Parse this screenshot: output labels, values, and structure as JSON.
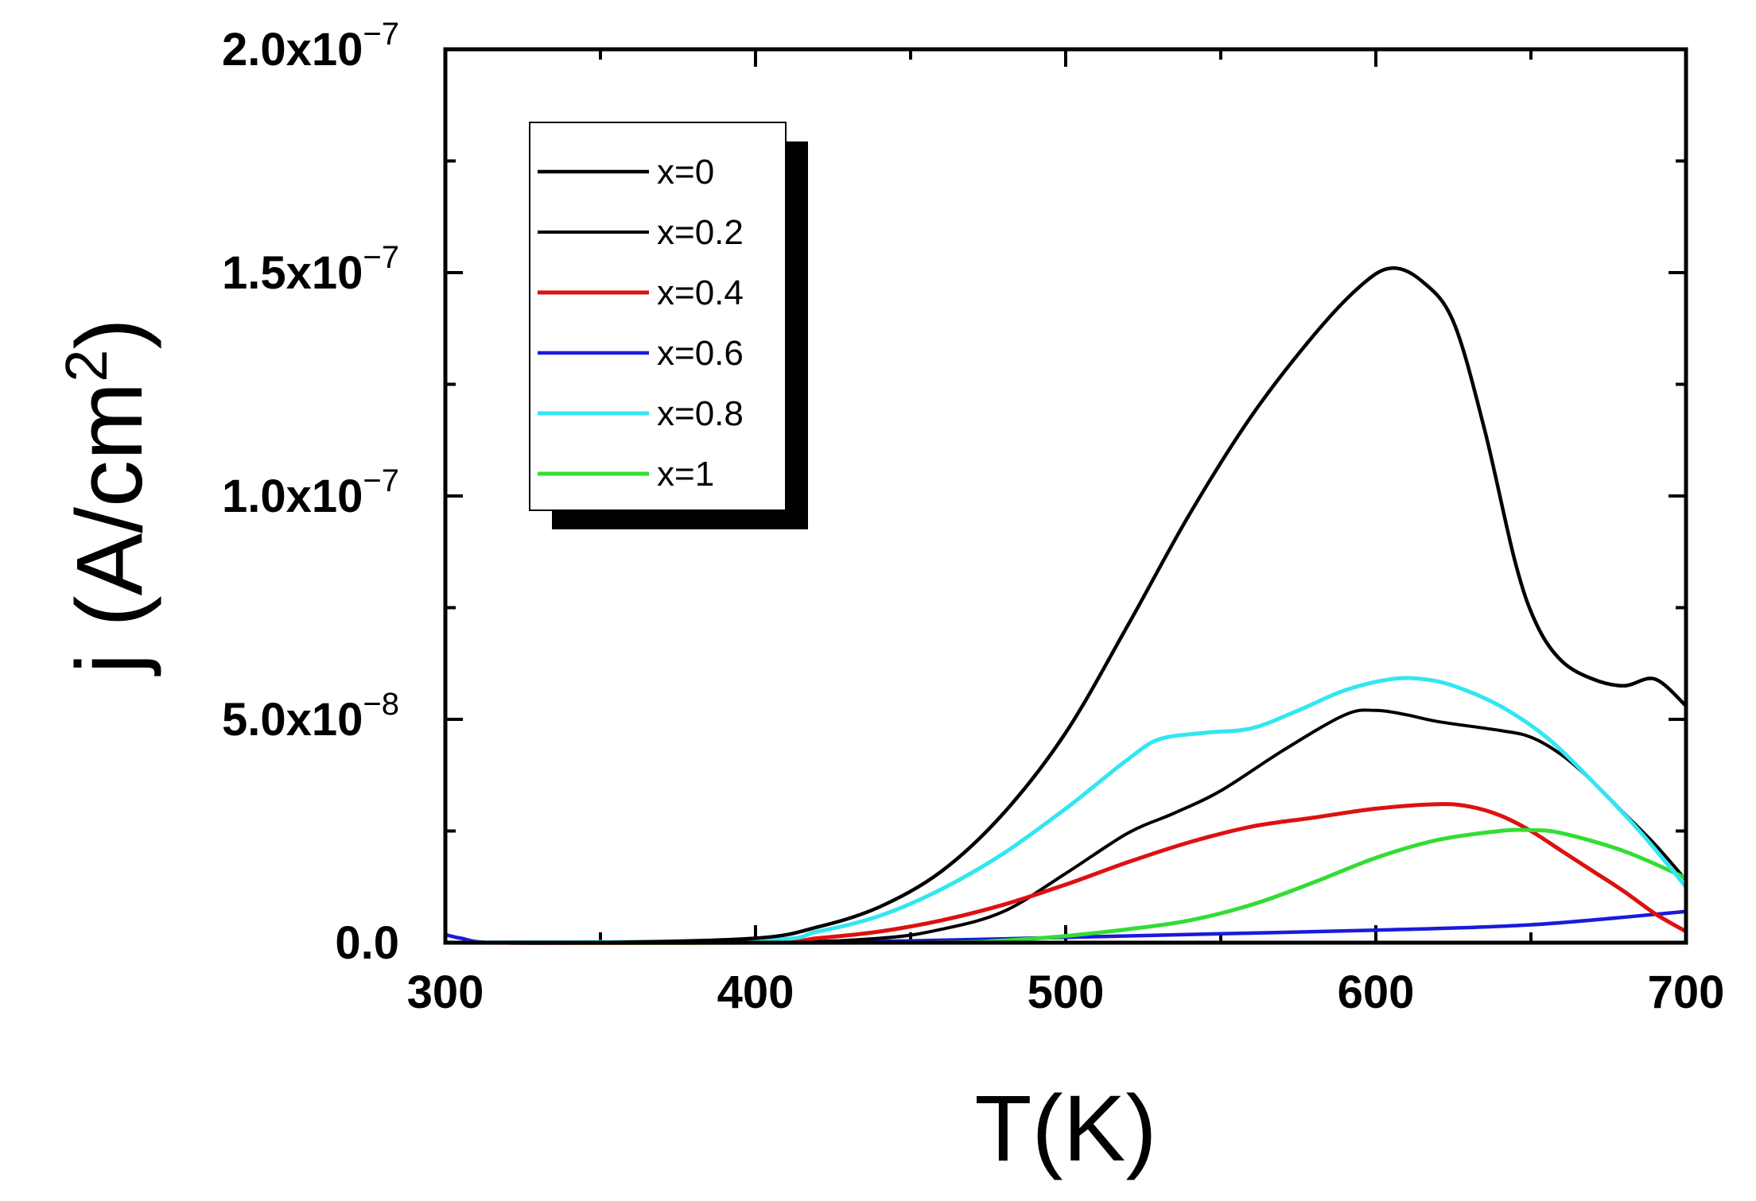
{
  "chart_data": {
    "type": "line",
    "xlabel": "T(K)",
    "ylabel": "j (A/cm",
    "ylabel_sup": "2",
    "ylabel_close": ")",
    "xlim": [
      300,
      700
    ],
    "ylim": [
      0,
      2e-07
    ],
    "x_ticks": [
      300,
      400,
      500,
      600,
      700
    ],
    "x_tick_labels": [
      "300",
      "400",
      "500",
      "600",
      "700"
    ],
    "y_ticks": [
      0,
      5e-08,
      1e-07,
      1.5e-07,
      2e-07
    ],
    "y_tick_labels": [
      {
        "mantissa": "0.0",
        "exp": ""
      },
      {
        "mantissa": "5.0x10",
        "exp": "−8"
      },
      {
        "mantissa": "1.0x10",
        "exp": "−7"
      },
      {
        "mantissa": "1.5x10",
        "exp": "−7"
      },
      {
        "mantissa": "2.0x10",
        "exp": "−7"
      }
    ],
    "legend_position": "top-left",
    "series": [
      {
        "name": "x=0",
        "color": "#000000",
        "width": 4.5,
        "x": [
          300,
          350,
          400,
          420,
          440,
          460,
          480,
          500,
          520,
          540,
          560,
          580,
          595,
          605,
          615,
          625,
          635,
          645,
          652,
          660,
          670,
          680,
          690,
          700
        ],
        "y": [
          0,
          0,
          1e-09,
          3.5e-09,
          8e-09,
          1.6e-08,
          2.9e-08,
          4.7e-08,
          7.1e-08,
          9.6e-08,
          1.18e-07,
          1.36e-07,
          1.47e-07,
          1.51e-07,
          1.48e-07,
          1.39e-07,
          1.15e-07,
          8.5e-08,
          7.1e-08,
          6.3e-08,
          5.9e-08,
          5.75e-08,
          5.9e-08,
          5.3e-08
        ]
      },
      {
        "name": "x=0.2",
        "color": "#000000",
        "width": 4,
        "x": [
          300,
          400,
          440,
          460,
          480,
          500,
          520,
          535,
          550,
          570,
          590,
          600,
          610,
          620,
          640,
          650,
          660,
          670,
          680,
          690,
          700
        ],
        "y": [
          0,
          0,
          1e-09,
          3e-09,
          7e-09,
          1.55e-08,
          2.45e-08,
          2.9e-08,
          3.4e-08,
          4.3e-08,
          5.1e-08,
          5.2e-08,
          5.1e-08,
          4.95e-08,
          4.75e-08,
          4.6e-08,
          4.2e-08,
          3.6e-08,
          2.9e-08,
          2.2e-08,
          1.4e-08
        ]
      },
      {
        "name": "x=0.4",
        "color": "#dd1111",
        "width": 5,
        "x": [
          300,
          400,
          420,
          440,
          460,
          480,
          500,
          520,
          540,
          560,
          580,
          600,
          620,
          630,
          640,
          650,
          660,
          670,
          680,
          690,
          700
        ],
        "y": [
          0,
          0,
          1e-09,
          2.5e-09,
          5e-09,
          8.5e-09,
          1.3e-08,
          1.8e-08,
          2.25e-08,
          2.6e-08,
          2.8e-08,
          3e-08,
          3.1e-08,
          3.05e-08,
          2.85e-08,
          2.5e-08,
          2.05e-08,
          1.6e-08,
          1.15e-08,
          6.5e-09,
          2.5e-09
        ]
      },
      {
        "name": "x=0.6",
        "color": "#1a1adc",
        "width": 4.5,
        "x": [
          300,
          305,
          315,
          350,
          400,
          450,
          500,
          550,
          600,
          650,
          700
        ],
        "y": [
          1.8e-09,
          1e-09,
          0,
          0,
          0,
          4e-10,
          1.2e-09,
          2e-09,
          2.8e-09,
          4e-09,
          7e-09
        ]
      },
      {
        "name": "x=0.8",
        "color": "#33e6f0",
        "width": 5,
        "x": [
          300,
          400,
          420,
          440,
          460,
          480,
          500,
          510,
          520,
          530,
          545,
          560,
          575,
          590,
          605,
          615,
          625,
          640,
          655,
          670,
          685,
          700
        ],
        "y": [
          0,
          5e-10,
          2.5e-09,
          6e-09,
          1.2e-08,
          2e-08,
          3e-08,
          3.55e-08,
          4.1e-08,
          4.55e-08,
          4.7e-08,
          4.8e-08,
          5.2e-08,
          5.65e-08,
          5.9e-08,
          5.9e-08,
          5.75e-08,
          5.3e-08,
          4.6e-08,
          3.6e-08,
          2.5e-08,
          1.25e-08
        ]
      },
      {
        "name": "x=1",
        "color": "#33dd33",
        "width": 5,
        "x": [
          300,
          450,
          480,
          500,
          520,
          540,
          560,
          580,
          600,
          620,
          640,
          650,
          660,
          680,
          700
        ],
        "y": [
          0,
          0,
          5e-10,
          1.5e-09,
          3e-09,
          5e-09,
          8.5e-09,
          1.35e-08,
          1.9e-08,
          2.3e-08,
          2.5e-08,
          2.52e-08,
          2.45e-08,
          2.05e-08,
          1.45e-08
        ]
      }
    ]
  }
}
